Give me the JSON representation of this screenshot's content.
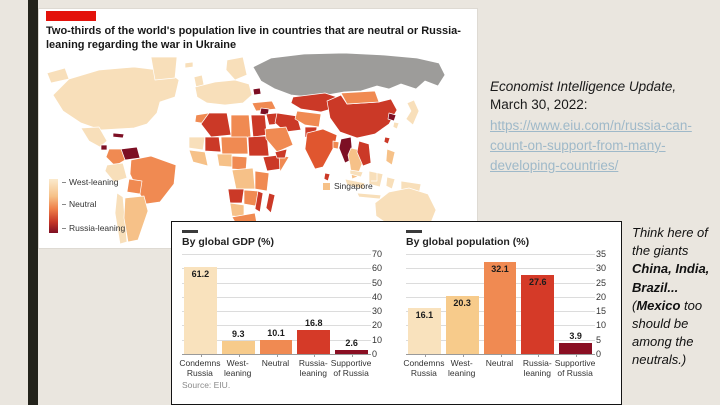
{
  "colors": {
    "slide_bg": "#eae6df",
    "edge_bar": "#23231b",
    "economist_red": "#e3120b",
    "west": "#f8dfba",
    "tan": "#f6c188",
    "neutral": "#f08a52",
    "lean_russia": "#cb3927",
    "india": "#e0562f",
    "supportive": "#7d0f24",
    "russia_grey": "#9d9c9a",
    "link": "#9fb9c9"
  },
  "map_chart": {
    "title": "Two-thirds of the world's population live in countries that are neutral or Russia-leaning regarding the war in Ukraine",
    "legend": {
      "items": [
        "West-leaning",
        "Neutral",
        "Russia-leaning"
      ]
    },
    "annotation": {
      "label": "Singapore"
    }
  },
  "charts": {
    "source": "Source: EIU.",
    "bar_colors": [
      "#f9e2bd",
      "#f7cb8b",
      "#f08a52",
      "#d53a28",
      "#8a0f23"
    ]
  },
  "chart_data": [
    {
      "type": "bar",
      "title": "By global GDP (%)",
      "categories": [
        "Condemns\nRussia",
        "West-\nleaning",
        "Neutral",
        "Russia-\nleaning",
        "Supportive\nof Russia"
      ],
      "values": [
        61.2,
        9.3,
        10.1,
        16.8,
        2.6
      ],
      "ylim": [
        0,
        70
      ],
      "yticks": [
        0,
        10,
        20,
        30,
        40,
        50,
        60,
        70
      ],
      "grid": true,
      "ticks_side": "right",
      "xlabel": "",
      "ylabel": ""
    },
    {
      "type": "bar",
      "title": "By global population (%)",
      "categories": [
        "Condemns\nRussia",
        "West-\nleaning",
        "Neutral",
        "Russia-\nleaning",
        "Supportive\nof Russia"
      ],
      "values": [
        16.1,
        20.3,
        32.1,
        27.6,
        3.9
      ],
      "ylim": [
        0,
        35
      ],
      "yticks": [
        0,
        5,
        10,
        15,
        20,
        25,
        30,
        35
      ],
      "grid": true,
      "ticks_side": "right",
      "xlabel": "",
      "ylabel": ""
    }
  ],
  "citation": {
    "line1": "Economist Intelligence Update,",
    "line2": "March 30, 2022:",
    "link": "https://www.eiu.com/n/russia-can-count-on-support-from-many-developing-countries/"
  },
  "note": {
    "segments": [
      {
        "text": "Think here of the giants ",
        "bold": false
      },
      {
        "text": "China, India, Brazil...",
        "bold": true
      },
      {
        "text": " (",
        "bold": false
      },
      {
        "text": "Mexico",
        "bold": true
      },
      {
        "text": " too should be among the neutrals.)",
        "bold": false
      }
    ]
  }
}
